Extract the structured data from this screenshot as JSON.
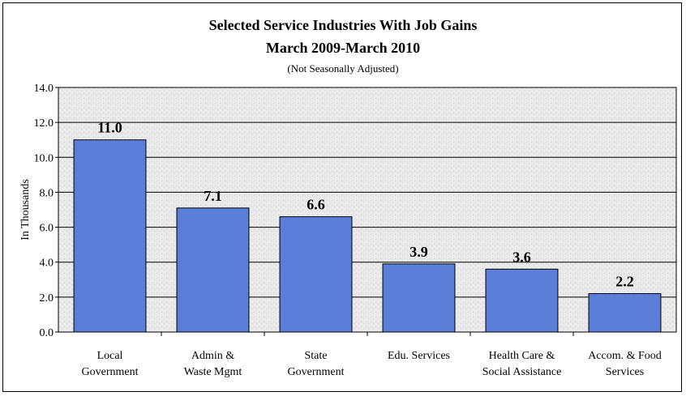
{
  "chart_data": {
    "type": "bar",
    "title": "Selected Service Industries With Job Gains",
    "title_line2": "March 2009-March 2010",
    "subtitle": "(Not Seasonally Adjusted)",
    "xlabel": "",
    "ylabel": "In Thousands",
    "ylim": [
      0,
      14
    ],
    "yticks": [
      "0.0",
      "2.0",
      "4.0",
      "6.0",
      "8.0",
      "10.0",
      "12.0",
      "14.0"
    ],
    "grid": true,
    "legend": "none",
    "categories": [
      [
        "Local",
        "Government"
      ],
      [
        "Admin &",
        "Waste Mgmt"
      ],
      [
        "State",
        "Government"
      ],
      [
        "Edu. Services"
      ],
      [
        "Health Care &",
        "Social Assistance"
      ],
      [
        "Accom. & Food",
        "Services"
      ]
    ],
    "values": [
      11.0,
      7.1,
      6.6,
      3.9,
      3.6,
      2.2
    ],
    "data_labels": [
      "11.0",
      "7.1",
      "6.6",
      "3.9",
      "3.6",
      "2.2"
    ],
    "colors": {
      "bar": "#5b7fd8",
      "bar_border": "#000000",
      "plot_bg": "#e7e7e7",
      "grid": "#000000"
    }
  }
}
